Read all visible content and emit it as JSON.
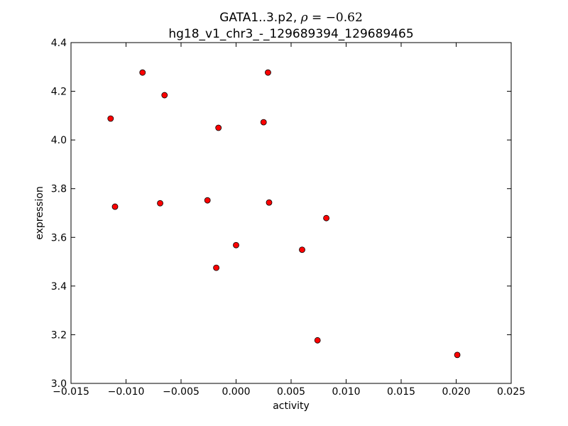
{
  "chart_data": {
    "type": "scatter",
    "title": {
      "line1_prefix": "GATA1..3.p2, ",
      "rho_symbol": "ρ",
      "rho_equals": " = ",
      "rho_value": "−0.62",
      "line2": "hg18_v1_chr3_-_129689394_129689465"
    },
    "xlabel": "activity",
    "ylabel": "expression",
    "xlim": [
      -0.015,
      0.025
    ],
    "ylim": [
      3.0,
      4.4
    ],
    "xticks": [
      -0.015,
      -0.01,
      -0.005,
      0.0,
      0.005,
      0.01,
      0.015,
      0.02,
      0.025
    ],
    "xtick_labels": [
      "−0.015",
      "−0.010",
      "−0.005",
      "0.000",
      "0.005",
      "0.010",
      "0.015",
      "0.020",
      "0.025"
    ],
    "yticks": [
      3.0,
      3.2,
      3.4,
      3.6,
      3.8,
      4.0,
      4.2,
      4.4
    ],
    "ytick_labels": [
      "3.0",
      "3.2",
      "3.4",
      "3.6",
      "3.8",
      "4.0",
      "4.2",
      "4.4"
    ],
    "grid": false,
    "marker_color": "#ff0000",
    "marker_edge_color": "#000000",
    "points": [
      {
        "x": -0.0085,
        "y": 4.277
      },
      {
        "x": 0.0029,
        "y": 4.277
      },
      {
        "x": -0.0065,
        "y": 4.184
      },
      {
        "x": -0.0114,
        "y": 4.088
      },
      {
        "x": 0.0025,
        "y": 4.073
      },
      {
        "x": -0.0016,
        "y": 4.05
      },
      {
        "x": -0.0026,
        "y": 3.752
      },
      {
        "x": 0.003,
        "y": 3.743
      },
      {
        "x": -0.0069,
        "y": 3.74
      },
      {
        "x": -0.011,
        "y": 3.726
      },
      {
        "x": 0.0082,
        "y": 3.679
      },
      {
        "x": 0.0,
        "y": 3.568
      },
      {
        "x": 0.006,
        "y": 3.549
      },
      {
        "x": -0.0018,
        "y": 3.475
      },
      {
        "x": 0.0074,
        "y": 3.177
      },
      {
        "x": 0.0201,
        "y": 3.117
      }
    ]
  }
}
